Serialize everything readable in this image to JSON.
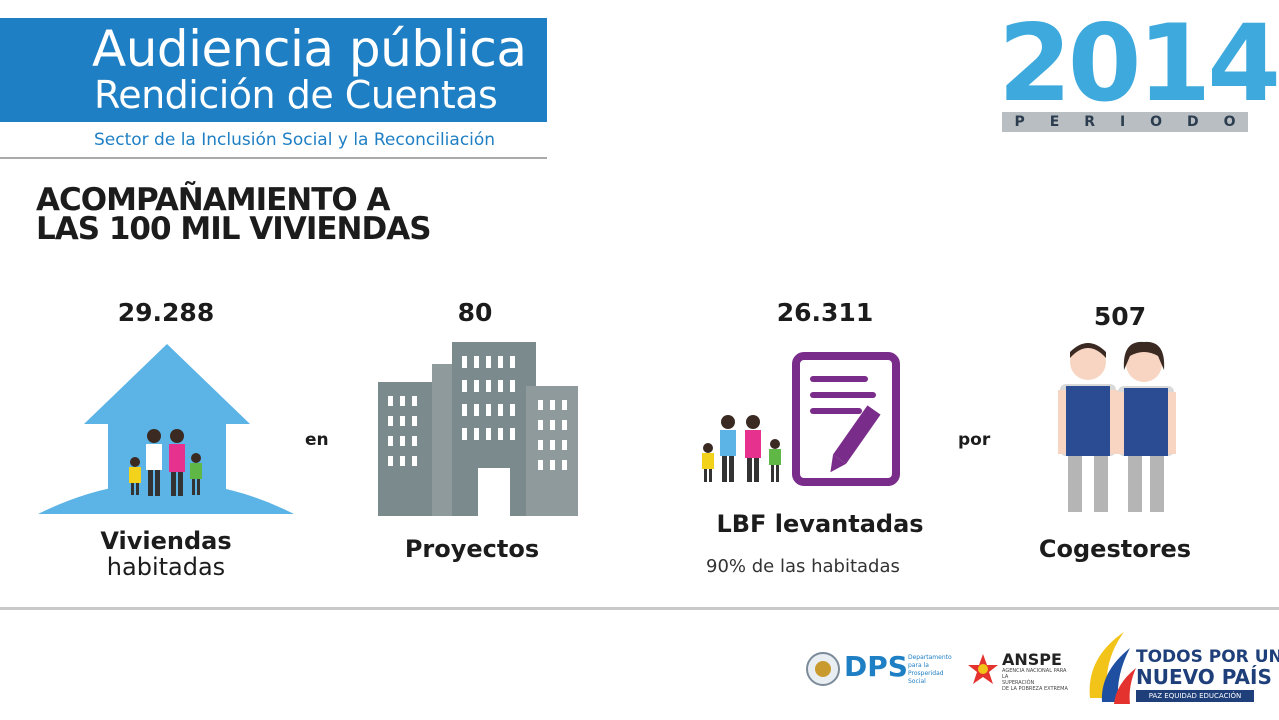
{
  "header": {
    "title_line1": "Audiencia pública",
    "title_line2": "Rendición de Cuentas",
    "subtitle": "Sector de la Inclusión Social y la Reconciliación",
    "year": "2014",
    "period": [
      "P",
      "E",
      "R",
      "I",
      "O",
      "D",
      "O"
    ]
  },
  "slide": {
    "title_line1": "ACOMPAÑAMIENTO A",
    "title_line2": "LAS 100 MIL VIVIENDAS"
  },
  "stats": {
    "viviendas": {
      "value": "29.288",
      "label_line1": "Viviendas",
      "label_line2": "habitadas"
    },
    "connector_en": "en",
    "proyectos": {
      "value": "80",
      "label": "Proyectos"
    },
    "lbf": {
      "value": "26.311",
      "label": "LBF levantadas",
      "note": "90% de las habitadas"
    },
    "connector_por": "por",
    "cogestores": {
      "value": "507",
      "label": "Cogestores"
    }
  },
  "colors": {
    "banner": "#1f7fc4",
    "year": "#3ea9dd",
    "house": "#5bb3e6",
    "building": "#7b8a8d",
    "document": "#7a2c8a",
    "vest": "#2b4b93"
  },
  "footer": {
    "dps": {
      "abbr": "DPS",
      "line1": "Departamento",
      "line2": "para la Prosperidad",
      "line3": "Social"
    },
    "anspe": {
      "abbr": "ANSPE",
      "line1": "AGENCIA NACIONAL PARA LA",
      "line2": "SUPERACIÓN",
      "line3": "DE LA POBREZA EXTREMA"
    },
    "gov": {
      "line1": "TODOS POR UN",
      "line2": "NUEVO PAÍS",
      "line3": "PAZ  EQUIDAD  EDUCACIÓN"
    }
  },
  "icons": [
    "house-family-icon",
    "buildings-icon",
    "family-document-icon",
    "cogestores-icon",
    "colombia-seal-icon",
    "anspe-logo-icon",
    "gov-flag-logo-icon"
  ]
}
